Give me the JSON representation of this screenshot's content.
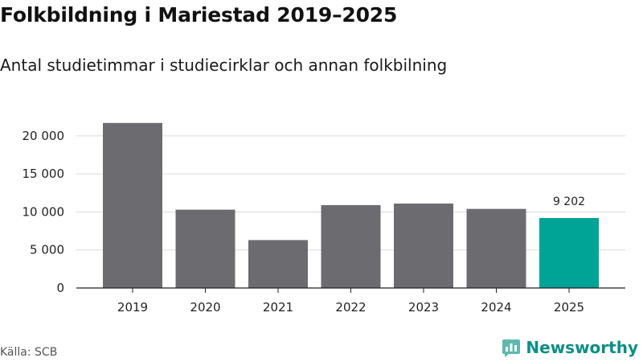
{
  "title": "Folkbildning i Mariestad 2019–2025",
  "subtitle": "Antal studietimmar i studiecirklar och annan folkbilning",
  "source": "Källa: SCB",
  "brand": "Newsworthy",
  "colors": {
    "bar": "#6c6b70",
    "highlight": "#00a497",
    "grid": "#dcdcdc",
    "axis": "#222222",
    "brand": "#0c8f84"
  },
  "chart_data": {
    "type": "bar",
    "title": "Folkbildning i Mariestad 2019–2025",
    "subtitle": "Antal studietimmar i studiecirklar och annan folkbilning",
    "xlabel": "",
    "ylabel": "",
    "categories": [
      "2019",
      "2020",
      "2021",
      "2022",
      "2023",
      "2024",
      "2025"
    ],
    "values": [
      21700,
      10300,
      6300,
      10900,
      11100,
      10400,
      9202
    ],
    "highlight_index": 6,
    "value_labels": [
      {
        "index": 6,
        "text": "9 202"
      }
    ],
    "ylim": [
      0,
      22000
    ],
    "yticks": [
      0,
      5000,
      10000,
      15000,
      20000
    ],
    "ytick_labels": [
      "0",
      "5 000",
      "10 000",
      "15 000",
      "20 000"
    ],
    "grid": true
  }
}
